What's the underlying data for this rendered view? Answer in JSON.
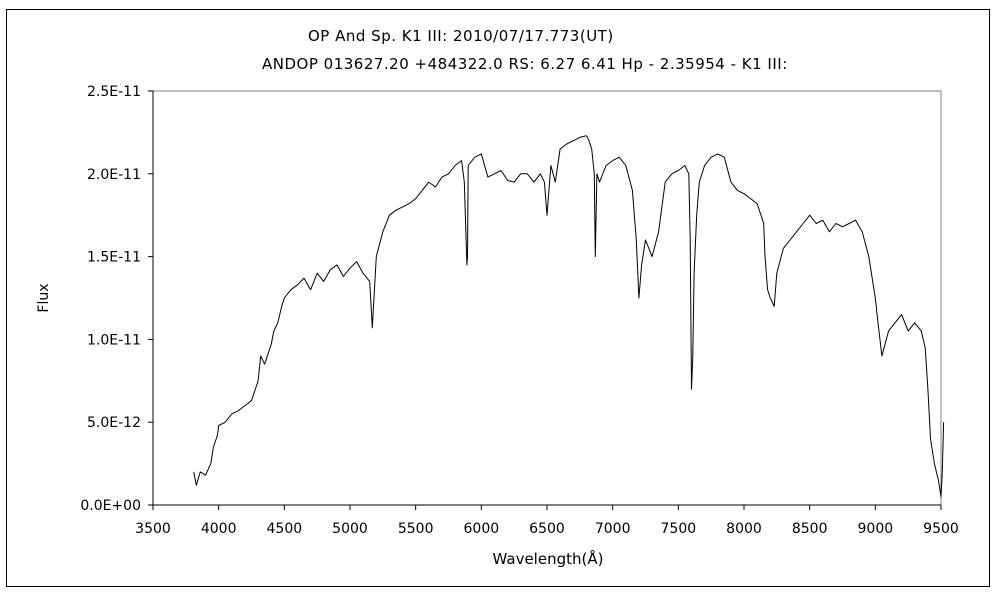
{
  "chart_data": {
    "type": "line",
    "title": "OP And    Sp. K1 III:    2010/07/17.773(UT)",
    "subtitle": "ANDOP 013627.20 +484322.0 RS: 6.27 6.41 Hp - 2.35954 - K1 III:",
    "xlabel": "Wavelength(Å)",
    "ylabel": "Flux",
    "xlim": [
      3500,
      9500
    ],
    "ylim": [
      0,
      2.5e-11
    ],
    "xticks": [
      "3500",
      "4000",
      "4500",
      "5000",
      "5500",
      "6000",
      "6500",
      "7000",
      "7500",
      "8000",
      "8500",
      "9000",
      "9500"
    ],
    "yticks": [
      "0.0E+00",
      "5.0E-12",
      "1.0E-11",
      "1.5E-11",
      "2.0E-11",
      "2.5E-11"
    ],
    "grid": false,
    "legend": "none",
    "colors": {
      "line": "#000000",
      "axis": "#000000",
      "background": "#ffffff"
    },
    "series": [
      {
        "x": [
          3810,
          3830,
          3860,
          3900,
          3940,
          3960,
          3990,
          4000,
          4050,
          4100,
          4150,
          4200,
          4250,
          4300,
          4320,
          4350,
          4400,
          4420,
          4450,
          4480,
          4500,
          4550,
          4600,
          4650,
          4700,
          4750,
          4800,
          4850,
          4900,
          4950,
          5000,
          5050,
          5100,
          5150,
          5170,
          5200,
          5250,
          5300,
          5350,
          5400,
          5450,
          5500,
          5550,
          5600,
          5650,
          5700,
          5750,
          5800,
          5850,
          5870,
          5890,
          5895,
          5900,
          5950,
          6000,
          6050,
          6100,
          6150,
          6200,
          6250,
          6300,
          6350,
          6400,
          6450,
          6480,
          6500,
          6530,
          6563,
          6600,
          6650,
          6700,
          6750,
          6800,
          6820,
          6840,
          6860,
          6868,
          6880,
          6900,
          6950,
          7000,
          7050,
          7100,
          7150,
          7180,
          7200,
          7220,
          7250,
          7300,
          7350,
          7400,
          7450,
          7500,
          7550,
          7580,
          7590,
          7600,
          7610,
          7620,
          7640,
          7660,
          7700,
          7750,
          7800,
          7850,
          7900,
          7950,
          8000,
          8050,
          8100,
          8150,
          8160,
          8180,
          8200,
          8230,
          8250,
          8300,
          8350,
          8400,
          8450,
          8500,
          8550,
          8600,
          8650,
          8700,
          8750,
          8800,
          8850,
          8900,
          8950,
          9000,
          9020,
          9050,
          9100,
          9150,
          9200,
          9250,
          9300,
          9350,
          9380,
          9400,
          9420,
          9450,
          9480,
          9500,
          9510,
          9520
        ],
        "y": [
          2e-12,
          1.2e-12,
          2e-12,
          1.8e-12,
          2.5e-12,
          3.5e-12,
          4.2e-12,
          4.8e-12,
          5e-12,
          5.5e-12,
          5.7e-12,
          6e-12,
          6.3e-12,
          7.5e-12,
          9e-12,
          8.5e-12,
          9.7e-12,
          1.05e-11,
          1.1e-11,
          1.2e-11,
          1.25e-11,
          1.3e-11,
          1.33e-11,
          1.37e-11,
          1.3e-11,
          1.4e-11,
          1.35e-11,
          1.42e-11,
          1.45e-11,
          1.38e-11,
          1.43e-11,
          1.47e-11,
          1.4e-11,
          1.35e-11,
          1.07e-11,
          1.5e-11,
          1.65e-11,
          1.75e-11,
          1.78e-11,
          1.8e-11,
          1.82e-11,
          1.85e-11,
          1.9e-11,
          1.95e-11,
          1.92e-11,
          1.98e-11,
          2e-11,
          2.05e-11,
          2.08e-11,
          1.95e-11,
          1.45e-11,
          1.5e-11,
          2.05e-11,
          2.1e-11,
          2.12e-11,
          1.98e-11,
          2e-11,
          2.02e-11,
          1.96e-11,
          1.95e-11,
          2e-11,
          2e-11,
          1.95e-11,
          2e-11,
          1.95e-11,
          1.75e-11,
          2.05e-11,
          1.95e-11,
          2.15e-11,
          2.18e-11,
          2.2e-11,
          2.22e-11,
          2.23e-11,
          2.2e-11,
          2.15e-11,
          2e-11,
          1.5e-11,
          2e-11,
          1.95e-11,
          2.05e-11,
          2.08e-11,
          2.1e-11,
          2.05e-11,
          1.9e-11,
          1.6e-11,
          1.25e-11,
          1.45e-11,
          1.6e-11,
          1.5e-11,
          1.65e-11,
          1.95e-11,
          2e-11,
          2.02e-11,
          2.05e-11,
          2e-11,
          1.6e-11,
          7e-12,
          9e-12,
          1.4e-11,
          1.75e-11,
          1.95e-11,
          2.05e-11,
          2.1e-11,
          2.12e-11,
          2.1e-11,
          1.95e-11,
          1.9e-11,
          1.88e-11,
          1.85e-11,
          1.82e-11,
          1.7e-11,
          1.5e-11,
          1.3e-11,
          1.25e-11,
          1.2e-11,
          1.4e-11,
          1.55e-11,
          1.6e-11,
          1.65e-11,
          1.7e-11,
          1.75e-11,
          1.7e-11,
          1.72e-11,
          1.65e-11,
          1.7e-11,
          1.68e-11,
          1.7e-11,
          1.72e-11,
          1.65e-11,
          1.5e-11,
          1.25e-11,
          1.1e-11,
          9e-12,
          1.05e-11,
          1.1e-11,
          1.15e-11,
          1.05e-11,
          1.1e-11,
          1.05e-11,
          9.5e-12,
          7e-12,
          4e-12,
          2.5e-12,
          1.5e-12,
          5e-13,
          2e-12,
          5e-12
        ]
      }
    ]
  }
}
